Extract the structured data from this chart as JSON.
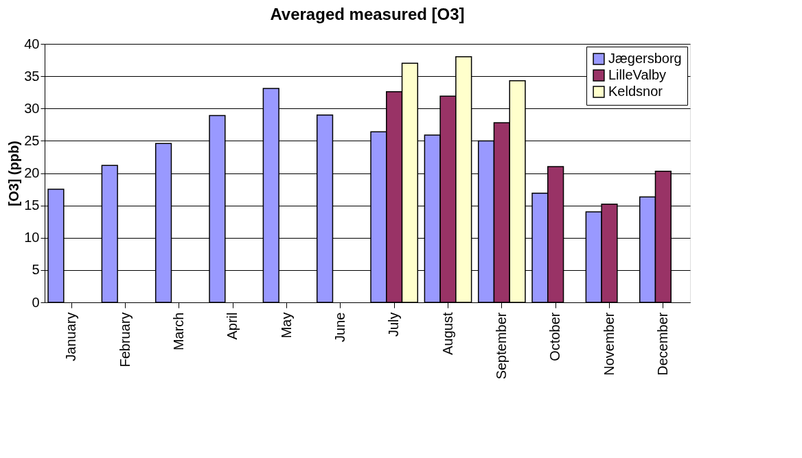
{
  "chart_data": {
    "type": "bar",
    "title": "Averaged measured [O3]",
    "ylabel": "[O3] (ppb)",
    "categories": [
      "January",
      "February",
      "March",
      "April",
      "May",
      "June",
      "July",
      "August",
      "September",
      "October",
      "November",
      "December"
    ],
    "series": [
      {
        "name": "Jægersborg",
        "color": "#9999ff",
        "values": [
          17.5,
          21.2,
          24.6,
          28.9,
          33.1,
          29.0,
          26.4,
          25.9,
          25.0,
          16.9,
          14.0,
          16.3
        ]
      },
      {
        "name": "LilleValby",
        "color": "#993366",
        "values": [
          null,
          null,
          null,
          null,
          null,
          null,
          32.6,
          31.9,
          27.8,
          21.0,
          15.2,
          20.3
        ]
      },
      {
        "name": "Keldsnor",
        "color": "#ffffcc",
        "values": [
          null,
          null,
          null,
          null,
          null,
          null,
          37.0,
          38.0,
          34.3,
          null,
          null,
          null
        ]
      }
    ],
    "ylim": [
      0,
      40
    ],
    "yticks": [
      0,
      5,
      10,
      15,
      20,
      25,
      30,
      35,
      40
    ],
    "grid": "y",
    "legend": "top right"
  }
}
